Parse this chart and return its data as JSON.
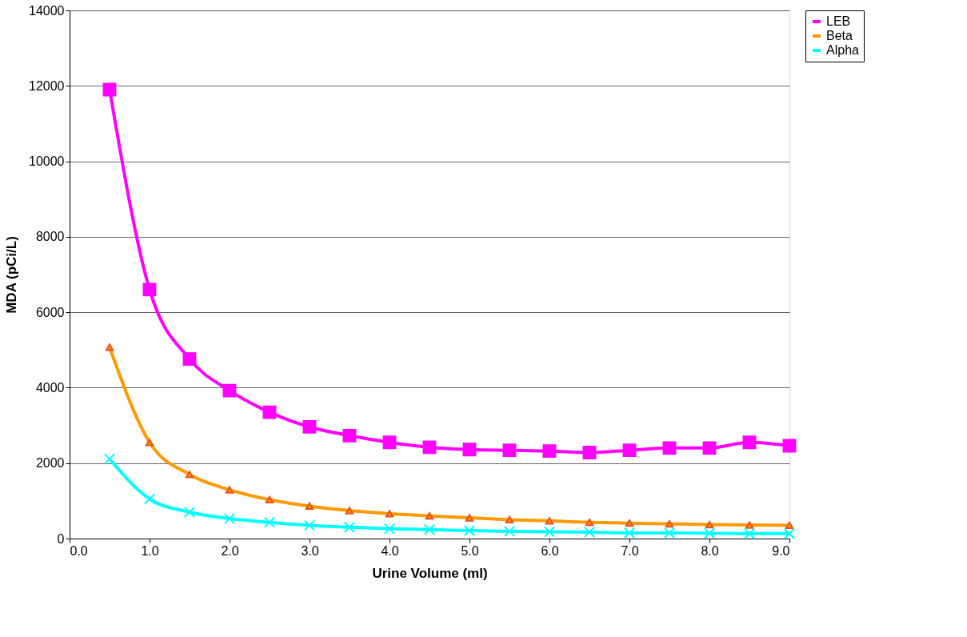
{
  "chart_data": {
    "type": "line",
    "xlabel": "Urine Volume (ml)",
    "ylabel": "MDA (pCi/L)",
    "x": [
      0.5,
      1.0,
      1.5,
      2.0,
      2.5,
      3.0,
      3.5,
      4.0,
      4.5,
      5.0,
      5.5,
      6.0,
      6.5,
      7.0,
      7.5,
      8.0,
      8.5,
      9.0
    ],
    "series": [
      {
        "name": "LEB",
        "color": "#ff00ff",
        "marker": "square",
        "values": [
          11900,
          6600,
          4760,
          3920,
          3350,
          2960,
          2730,
          2550,
          2420,
          2360,
          2340,
          2320,
          2280,
          2340,
          2400,
          2400,
          2550,
          2460
        ]
      },
      {
        "name": "Beta",
        "color": "#ff9900",
        "marker": "triangle",
        "values": [
          5070,
          2550,
          1700,
          1290,
          1030,
          860,
          740,
          660,
          600,
          550,
          500,
          470,
          430,
          410,
          390,
          370,
          360,
          350
        ]
      },
      {
        "name": "Alpha",
        "color": "#00ffff",
        "marker": "cross",
        "values": [
          2110,
          1050,
          700,
          530,
          430,
          350,
          300,
          260,
          240,
          210,
          190,
          180,
          170,
          150,
          150,
          140,
          130,
          130
        ]
      }
    ],
    "xlim": [
      0,
      9
    ],
    "xticks": [
      {
        "value": 0,
        "label": "0.0"
      },
      {
        "value": 1,
        "label": "1.0"
      },
      {
        "value": 2,
        "label": "2.0"
      },
      {
        "value": 3,
        "label": "3.0"
      },
      {
        "value": 4,
        "label": "4.0"
      },
      {
        "value": 5,
        "label": "5.0"
      },
      {
        "value": 6,
        "label": "6.0"
      },
      {
        "value": 7,
        "label": "7.0"
      },
      {
        "value": 8,
        "label": "8.0"
      },
      {
        "value": 9,
        "label": "9.0"
      }
    ],
    "ylim": [
      0,
      14000
    ],
    "yticks": [
      0,
      2000,
      4000,
      6000,
      8000,
      10000,
      12000,
      14000
    ],
    "grid": "y",
    "legend": "right",
    "line_style": "solid"
  }
}
